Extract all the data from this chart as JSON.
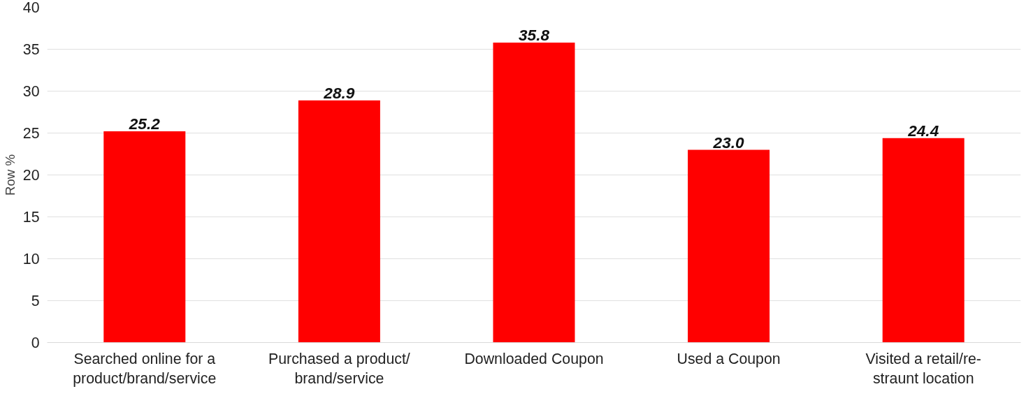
{
  "chart_data": {
    "type": "bar",
    "ylabel": "Row %",
    "categories": [
      "Searched online for a product/brand/service",
      "Purchased a product/brand/service",
      "Downloaded Coupon",
      "Used a Coupon",
      "Visited a retail/re-straunt location"
    ],
    "values": [
      25.2,
      28.9,
      35.8,
      23.0,
      24.4
    ],
    "color": "#ff0000",
    "value_labels": [
      "25.2",
      "28.9",
      "35.8",
      "23.0",
      "24.4"
    ],
    "ylim": [
      0,
      40
    ],
    "yticks": [
      0,
      5,
      10,
      15,
      20,
      25,
      30,
      35,
      40
    ],
    "grid": "y"
  }
}
